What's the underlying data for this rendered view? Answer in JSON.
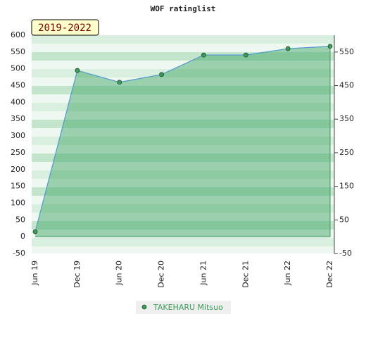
{
  "chart_data": {
    "type": "area",
    "title": "WOF ratinglist",
    "annotation": "2019-2022",
    "categories": [
      "Jun 19",
      "Dec 19",
      "Jun 20",
      "Dec 20",
      "Jun 21",
      "Dec 21",
      "Jun 22",
      "Dec 22"
    ],
    "series": [
      {
        "name": "TAKEHARU Mitsuo",
        "color": "#4f9bd0",
        "marker_color": "#3c9a5a",
        "values": [
          15,
          495,
          460,
          483,
          541,
          541,
          560,
          567
        ]
      }
    ],
    "ylim": [
      -50,
      600
    ],
    "yticks": [
      -50,
      0,
      50,
      100,
      150,
      200,
      250,
      300,
      350,
      400,
      450,
      500,
      550,
      600
    ],
    "y2lim": [
      -50,
      600
    ],
    "y2ticks": [
      -50,
      50,
      150,
      250,
      350,
      450,
      550
    ],
    "grid": false
  }
}
